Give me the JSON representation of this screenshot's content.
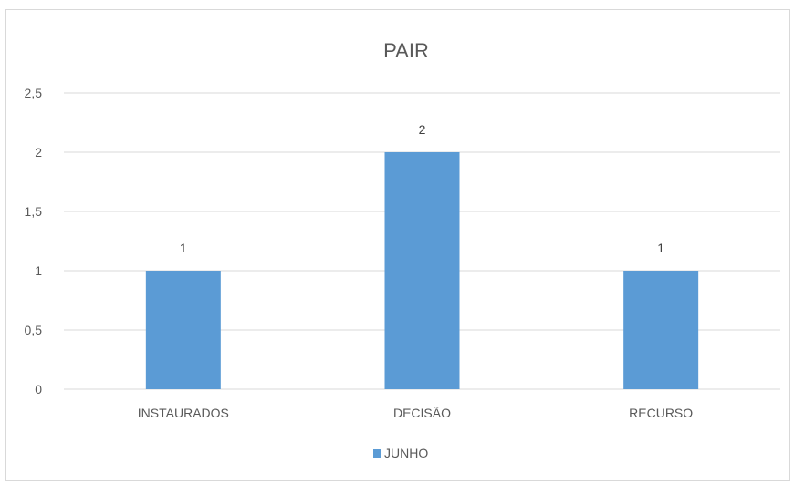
{
  "chart_data": {
    "type": "bar",
    "title": "PAIR",
    "categories": [
      "INSTAURADOS",
      "DECISÃO",
      "RECURSO"
    ],
    "series": [
      {
        "name": "JUNHO",
        "values": [
          1,
          2,
          1
        ],
        "color": "#5b9bd5"
      }
    ],
    "data_labels": [
      "1",
      "2",
      "1"
    ],
    "y_ticks": [
      "0",
      "0,5",
      "1",
      "1,5",
      "2",
      "2,5"
    ],
    "y_tick_values": [
      0,
      0.5,
      1,
      1.5,
      2,
      2.5
    ],
    "ylim": [
      0,
      2.5
    ],
    "xlabel": "",
    "ylabel": "",
    "grid": true,
    "legend_position": "bottom"
  }
}
